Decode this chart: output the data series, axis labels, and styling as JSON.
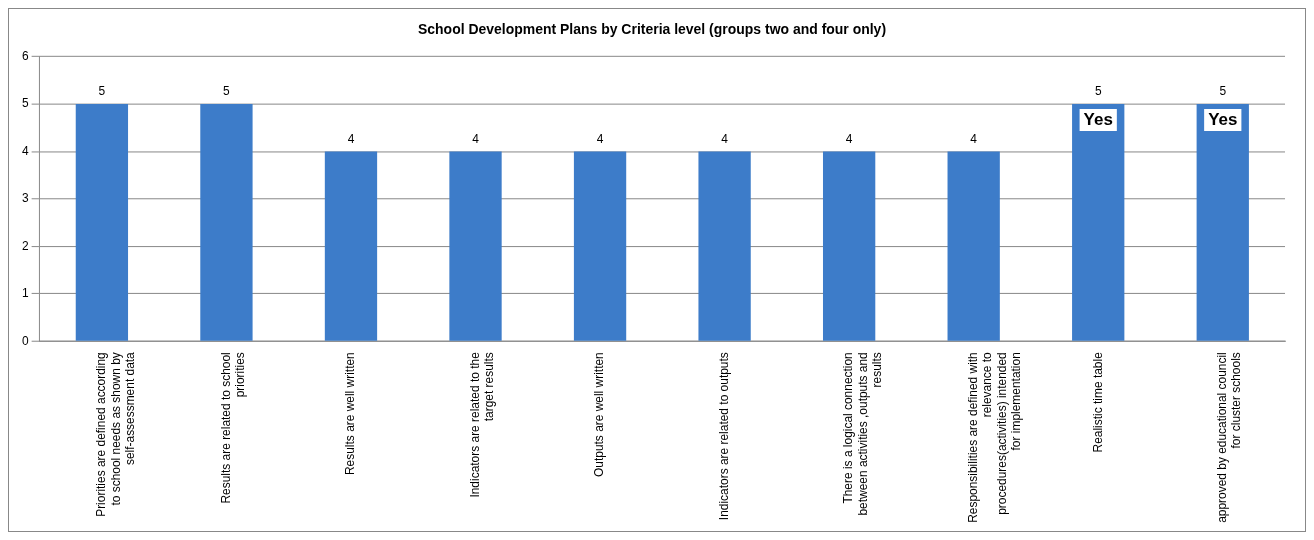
{
  "chart_data": {
    "type": "bar",
    "title": "School Development Plans by Criteria level (groups two and four only)",
    "categories": [
      "Priorities are defined according\nto school needs as shown by\nself-assessment data",
      "Results are related to school\npriorities",
      "Results are well written",
      "Indicators are related to the\ntarget results",
      "Outputs are well written",
      "Indicators are related to outputs",
      "There is a logical connection\nbetween activities ,outputs and\nresults",
      "Responsibilities are defined with\nrelevance to\nprocedures(activities) intended\nfor implementation",
      "Realistic time table",
      "approved by educational council\nfor cluster schools"
    ],
    "values": [
      5,
      5,
      4,
      4,
      4,
      4,
      4,
      4,
      5,
      5
    ],
    "color": "#3d7cc9",
    "ylim": [
      0,
      6
    ],
    "yticks": [
      0,
      1,
      2,
      3,
      4,
      5,
      6
    ],
    "grid": "y",
    "data_labels": true,
    "annotations": [
      "Yes",
      "Yes"
    ]
  }
}
